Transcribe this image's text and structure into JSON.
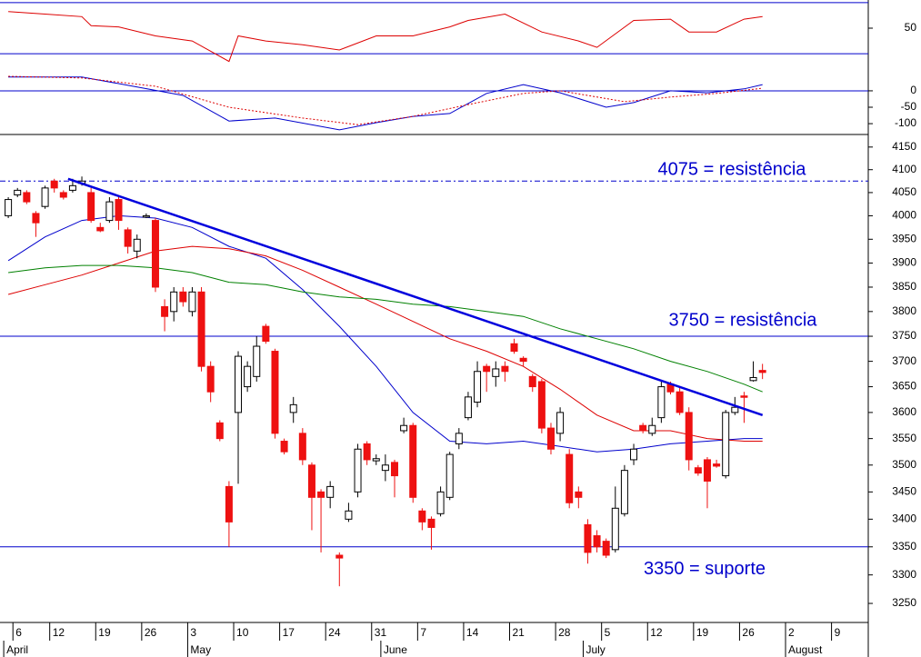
{
  "chart_data": [
    {
      "type": "line",
      "xlim": [
        -0.9,
        93.5
      ],
      "ylim": [
        28,
        72
      ],
      "yticks": [
        50
      ],
      "levels": [
        70,
        30
      ],
      "level_color": "#0000cc",
      "series": [
        {
          "color": "#dd0000",
          "x": [
            0,
            4,
            8,
            9,
            12,
            16,
            20,
            24,
            25,
            28,
            32,
            36,
            40,
            44,
            48,
            50,
            54,
            58,
            62,
            64,
            68,
            72,
            74,
            77,
            80,
            82
          ],
          "values": [
            63,
            61,
            59,
            52,
            51,
            44,
            40,
            24,
            44,
            40,
            37,
            33,
            44,
            44,
            51,
            56,
            61,
            47,
            40,
            35,
            56,
            57,
            47,
            47,
            57,
            59
          ]
        }
      ]
    },
    {
      "type": "line",
      "xlim": [
        -0.9,
        93.5
      ],
      "ylim": [
        -133,
        105
      ],
      "yticks": [
        0,
        -50,
        -100
      ],
      "levels": [
        0
      ],
      "level_color": "#0000cc",
      "series": [
        {
          "color": "#0000cc",
          "dashed": false,
          "x": [
            0,
            8,
            12,
            19,
            24,
            29,
            36,
            40,
            44,
            48,
            52,
            56,
            60,
            65,
            68,
            72,
            76,
            80,
            82
          ],
          "values": [
            42,
            42,
            22,
            -14,
            -92,
            -83,
            -119,
            -97,
            -78,
            -69,
            -8,
            19,
            -6,
            -50,
            -36,
            0,
            -6,
            6,
            19
          ]
        },
        {
          "color": "#dd0000",
          "dashed": true,
          "x": [
            0,
            8,
            16,
            24,
            32,
            38,
            44,
            50,
            56,
            60,
            67,
            72,
            77,
            82
          ],
          "values": [
            44,
            39,
            14,
            -50,
            -83,
            -103,
            -78,
            -42,
            -8,
            0,
            -33,
            -19,
            -8,
            8
          ]
        }
      ]
    },
    {
      "type": "candlestick",
      "log": true,
      "xlim": [
        -0.9,
        93.5
      ],
      "ylim": [
        3217,
        4178
      ],
      "yticks": [
        3250,
        3300,
        3350,
        3400,
        3450,
        3500,
        3550,
        3600,
        3650,
        3700,
        3750,
        3800,
        3850,
        3900,
        3950,
        4000,
        4050,
        4100,
        4150
      ],
      "xticks": [
        {
          "value": 1,
          "label": "6"
        },
        {
          "value": 5,
          "label": "12"
        },
        {
          "value": 10,
          "label": "19"
        },
        {
          "value": 15,
          "label": "26"
        },
        {
          "value": 20,
          "label": "3"
        },
        {
          "value": 25,
          "label": "10"
        },
        {
          "value": 30,
          "label": "17"
        },
        {
          "value": 35,
          "label": "24"
        },
        {
          "value": 40,
          "label": "31"
        },
        {
          "value": 45,
          "label": "7"
        },
        {
          "value": 50,
          "label": "14"
        },
        {
          "value": 55,
          "label": "21"
        },
        {
          "value": 60,
          "label": "28"
        },
        {
          "value": 65,
          "label": "5"
        },
        {
          "value": 70,
          "label": "12"
        },
        {
          "value": 75,
          "label": "19"
        },
        {
          "value": 80,
          "label": "26"
        },
        {
          "value": 85,
          "label": "2"
        },
        {
          "value": 90,
          "label": "9"
        }
      ],
      "month_ticks": [
        {
          "value": 0,
          "label": "April"
        },
        {
          "value": 20,
          "label": "May"
        },
        {
          "value": 41,
          "label": "June"
        },
        {
          "value": 63,
          "label": "July"
        },
        {
          "value": 85,
          "label": "August"
        }
      ],
      "up_color": "#ffffff",
      "down_color": "#ee1111",
      "candles": {
        "x": [
          0,
          1,
          2,
          3,
          4,
          5,
          6,
          7,
          8,
          9,
          10,
          11,
          12,
          13,
          14,
          15,
          16,
          17,
          18,
          19,
          20,
          21,
          22,
          23,
          24,
          25,
          26,
          27,
          28,
          29,
          30,
          31,
          32,
          33,
          34,
          35,
          36,
          37,
          38,
          39,
          40,
          41,
          42,
          43,
          44,
          45,
          46,
          47,
          48,
          49,
          50,
          51,
          52,
          53,
          54,
          55,
          56,
          57,
          58,
          59,
          60,
          61,
          62,
          63,
          64,
          65,
          66,
          67,
          68,
          69,
          70,
          71,
          72,
          73,
          74,
          75,
          76,
          77,
          78,
          79,
          80,
          81,
          82
        ],
        "open": [
          4000,
          4045,
          4050,
          4005,
          4020,
          4075,
          4050,
          4055,
          4070,
          4050,
          3975,
          3990,
          4035,
          3970,
          3925,
          3998,
          3990,
          3810,
          3800,
          3840,
          3800,
          3840,
          3690,
          3580,
          3460,
          3600,
          3650,
          3670,
          3770,
          3720,
          3545,
          3600,
          3560,
          3500,
          3450,
          3440,
          3335,
          3400,
          3450,
          3540,
          3508,
          3490,
          3505,
          3565,
          3575,
          3415,
          3400,
          3410,
          3440,
          3540,
          3590,
          3620,
          3690,
          3670,
          3690,
          3735,
          3706,
          3670,
          3660,
          3570,
          3560,
          3520,
          3450,
          3390,
          3370,
          3360,
          3345,
          3410,
          3510,
          3575,
          3560,
          3590,
          3655,
          3640,
          3600,
          3495,
          3510,
          3502,
          3480,
          3600,
          3632,
          3662,
          3682
        ],
        "high": [
          4040,
          4060,
          4055,
          4010,
          4065,
          4080,
          4055,
          4080,
          4085,
          4060,
          3985,
          4040,
          4040,
          3975,
          3960,
          4005,
          3995,
          3825,
          3850,
          3850,
          3850,
          3850,
          3700,
          3585,
          3470,
          3720,
          3700,
          3750,
          3775,
          3725,
          3550,
          3630,
          3570,
          3505,
          3455,
          3470,
          3340,
          3430,
          3540,
          3545,
          3520,
          3520,
          3510,
          3590,
          3580,
          3420,
          3405,
          3460,
          3525,
          3570,
          3640,
          3700,
          3695,
          3700,
          3700,
          3745,
          3710,
          3675,
          3665,
          3580,
          3610,
          3530,
          3460,
          3400,
          3380,
          3365,
          3460,
          3500,
          3540,
          3580,
          3590,
          3660,
          3660,
          3650,
          3610,
          3500,
          3515,
          3510,
          3605,
          3630,
          3640,
          3700,
          3695
        ],
        "low": [
          3995,
          4040,
          4025,
          3955,
          4015,
          4050,
          4035,
          4050,
          4065,
          3985,
          3965,
          3985,
          3970,
          3920,
          3910,
          3995,
          3840,
          3760,
          3780,
          3810,
          3790,
          3680,
          3620,
          3545,
          3350,
          3465,
          3640,
          3660,
          3735,
          3550,
          3520,
          3580,
          3500,
          3380,
          3340,
          3420,
          3280,
          3395,
          3440,
          3500,
          3500,
          3470,
          3440,
          3560,
          3430,
          3380,
          3345,
          3405,
          3435,
          3530,
          3585,
          3610,
          3640,
          3650,
          3660,
          3715,
          3690,
          3640,
          3560,
          3520,
          3545,
          3420,
          3420,
          3320,
          3340,
          3330,
          3340,
          3405,
          3500,
          3560,
          3555,
          3580,
          3635,
          3595,
          3490,
          3480,
          3420,
          3495,
          3475,
          3595,
          3580,
          3660,
          3665
        ],
        "close": [
          4035,
          4055,
          4030,
          3985,
          4060,
          4060,
          4040,
          4065,
          4075,
          3990,
          3968,
          4030,
          3990,
          3935,
          3950,
          4000,
          3850,
          3790,
          3840,
          3820,
          3840,
          3690,
          3640,
          3550,
          3395,
          3710,
          3690,
          3730,
          3740,
          3560,
          3525,
          3615,
          3510,
          3440,
          3440,
          3460,
          3330,
          3415,
          3530,
          3510,
          3512,
          3500,
          3480,
          3575,
          3440,
          3395,
          3385,
          3450,
          3520,
          3560,
          3630,
          3680,
          3680,
          3685,
          3680,
          3720,
          3700,
          3650,
          3570,
          3530,
          3600,
          3430,
          3440,
          3340,
          3350,
          3335,
          3420,
          3490,
          3530,
          3565,
          3575,
          3650,
          3640,
          3600,
          3510,
          3485,
          3470,
          3498,
          3600,
          3610,
          3630,
          3668,
          3678
        ]
      },
      "series": [
        {
          "color": "#0000cc",
          "x": [
            0,
            4,
            8,
            12,
            16,
            20,
            24,
            28,
            32,
            36,
            40,
            44,
            48,
            52,
            56,
            60,
            64,
            68,
            72,
            76,
            80,
            82
          ],
          "values": [
            3905,
            3955,
            3990,
            4000,
            3995,
            3975,
            3935,
            3910,
            3845,
            3770,
            3690,
            3600,
            3545,
            3540,
            3545,
            3535,
            3525,
            3530,
            3540,
            3545,
            3550,
            3550
          ]
        },
        {
          "color": "#dd0000",
          "x": [
            0,
            4,
            8,
            12,
            16,
            20,
            24,
            28,
            32,
            36,
            40,
            44,
            48,
            52,
            56,
            60,
            64,
            68,
            72,
            76,
            80,
            82
          ],
          "values": [
            3835,
            3855,
            3875,
            3900,
            3925,
            3935,
            3930,
            3915,
            3885,
            3850,
            3815,
            3780,
            3745,
            3720,
            3690,
            3645,
            3595,
            3565,
            3565,
            3550,
            3545,
            3545
          ]
        },
        {
          "color": "#008000",
          "x": [
            0,
            4,
            8,
            12,
            16,
            20,
            24,
            28,
            32,
            36,
            40,
            44,
            48,
            52,
            56,
            60,
            64,
            68,
            72,
            76,
            80,
            82
          ],
          "values": [
            3880,
            3890,
            3895,
            3895,
            3890,
            3880,
            3860,
            3855,
            3840,
            3830,
            3825,
            3815,
            3810,
            3800,
            3790,
            3765,
            3745,
            3725,
            3700,
            3680,
            3655,
            3640
          ]
        }
      ],
      "trendline": {
        "color": "#0000dd",
        "x": [
          6.5,
          82
        ],
        "values": [
          4080,
          3595
        ]
      },
      "annotation_color": "#0000cc",
      "annotations": [
        {
          "text": "4075 = resistência",
          "value": 4075,
          "line": "dashdot"
        },
        {
          "text": "3750 = resistência",
          "value": 3750,
          "line": "solid"
        },
        {
          "text": "3350 = suporte",
          "value": 3350,
          "line": "solid"
        }
      ]
    }
  ]
}
